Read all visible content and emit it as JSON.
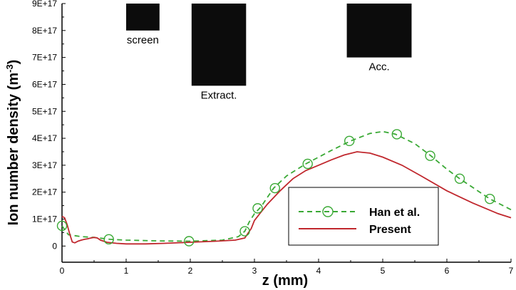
{
  "chart_data": {
    "type": "line",
    "xlabel": "z (mm)",
    "ylabel": "Ion number density (m",
    "ylabel_sup": "-3",
    "ylabel_close": ")",
    "xlim": [
      0,
      7
    ],
    "ylim": [
      -6e+16,
      9e+17
    ],
    "x_ticks": [
      0,
      1,
      2,
      3,
      4,
      5,
      6,
      7
    ],
    "x_tick_labels": [
      "0",
      "1",
      "2",
      "3",
      "4",
      "5",
      "6",
      "7"
    ],
    "y_ticks": [
      0,
      1e+17,
      2e+17,
      3e+17,
      4e+17,
      5e+17,
      6e+17,
      7e+17,
      8e+17,
      9e+17
    ],
    "y_tick_labels": [
      "0",
      "1E+17",
      "2E+17",
      "3E+17",
      "4E+17",
      "5E+17",
      "6E+17",
      "7E+17",
      "8E+17",
      "9E+17"
    ],
    "grid": false,
    "legend_position": "bottom-right",
    "electrodes": [
      {
        "label": "screen",
        "z": [
          1.0,
          1.52
        ],
        "y": [
          8e+17,
          9e+17
        ]
      },
      {
        "label": "Extract.",
        "z": [
          2.02,
          2.87
        ],
        "y": [
          5.95e+17,
          9e+17
        ]
      },
      {
        "label": "Acc.",
        "z": [
          4.44,
          5.45
        ],
        "y": [
          7e+17,
          9e+17
        ]
      }
    ],
    "series": [
      {
        "name": "Han et al.",
        "color": "#3aa935",
        "style": "dashed",
        "marker": "open-circle",
        "x": [
          0.0,
          0.1,
          0.3,
          0.5,
          0.75,
          1.0,
          1.5,
          2.0,
          2.5,
          2.75,
          2.85,
          2.92,
          3.0,
          3.1,
          3.3,
          3.5,
          3.8,
          4.2,
          4.5,
          4.8,
          5.0,
          5.2,
          5.5,
          5.75,
          6.0,
          6.2,
          6.45,
          6.67,
          7.0
        ],
        "y": [
          7.5e+16,
          4.2e+16,
          3.5e+16,
          3.2e+16,
          2.5e+16,
          2.2e+16,
          1.9e+16,
          1.8e+16,
          2.2e+16,
          3.5e+16,
          5.5e+16,
          9e+16,
          1.2e+17,
          1.45e+17,
          2.15e+17,
          2.6e+17,
          3.05e+17,
          3.55e+17,
          3.9e+17,
          4.18e+17,
          4.25e+17,
          4.15e+17,
          3.8e+17,
          3.35e+17,
          2.85e+17,
          2.5e+17,
          2.1e+17,
          1.75e+17,
          1.35e+17
        ],
        "marker_x": [
          0.0,
          0.73,
          1.98,
          2.85,
          3.05,
          3.32,
          3.83,
          4.48,
          5.22,
          5.74,
          6.2,
          6.67
        ],
        "marker_y": [
          7.5e+16,
          2.5e+16,
          1.8e+16,
          5.5e+16,
          1.4e+17,
          2.15e+17,
          3.05e+17,
          3.9e+17,
          4.15e+17,
          3.35e+17,
          2.5e+17,
          1.75e+17
        ]
      },
      {
        "name": "Present",
        "color": "#c0272d",
        "style": "solid",
        "x": [
          0.0,
          0.04,
          0.08,
          0.12,
          0.16,
          0.2,
          0.25,
          0.3,
          0.35,
          0.4,
          0.45,
          0.5,
          0.55,
          0.6,
          0.7,
          0.85,
          1.0,
          1.3,
          1.6,
          2.0,
          2.4,
          2.7,
          2.85,
          2.95,
          3.0,
          3.1,
          3.2,
          3.4,
          3.6,
          3.8,
          4.0,
          4.2,
          4.4,
          4.6,
          4.8,
          5.0,
          5.3,
          5.6,
          6.0,
          6.4,
          6.8,
          7.0
        ],
        "y": [
          1.1e+17,
          1.05e+17,
          8e+16,
          4.5e+16,
          1.5e+16,
          1.2e+16,
          1.8e+16,
          2.2e+16,
          2.5e+16,
          2.7e+16,
          3e+16,
          3.2e+16,
          3e+16,
          2.2e+16,
          1.4e+16,
          1e+16,
          8000000000000000.0,
          8000000000000000.0,
          1e+16,
          1.4e+16,
          1.8e+16,
          2.2e+16,
          3e+16,
          6.5e+16,
          9.5e+16,
          1.25e+17,
          1.55e+17,
          2.05e+17,
          2.5e+17,
          2.8e+17,
          3e+17,
          3.2e+17,
          3.38e+17,
          3.5e+17,
          3.45e+17,
          3.3e+17,
          3e+17,
          2.6e+17,
          2.05e+17,
          1.6e+17,
          1.2e+17,
          1.05e+17
        ]
      }
    ]
  }
}
